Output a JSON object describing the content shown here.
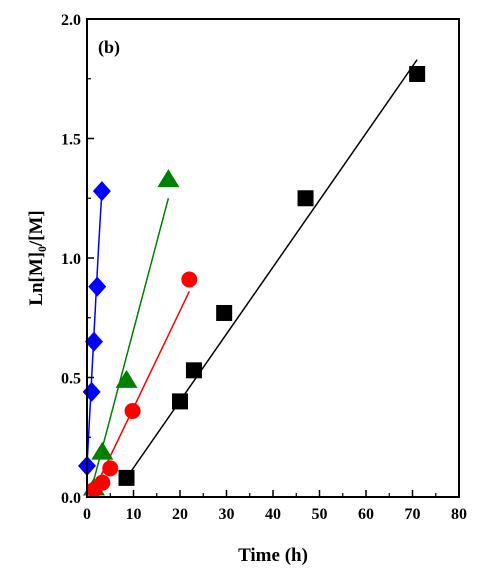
{
  "chart_data": {
    "type": "scatter",
    "panel_label": "(b)",
    "xlabel": "Time (h)",
    "ylabel": "Ln[M]₀/[M]",
    "xlim": [
      0,
      80
    ],
    "ylim": [
      0,
      2.0
    ],
    "x_ticks": [
      "0",
      "10",
      "20",
      "30",
      "40",
      "50",
      "60",
      "70",
      "80"
    ],
    "y_ticks": [
      "0.0",
      "0.5",
      "1.0",
      "1.5",
      "2.0"
    ],
    "grid": false,
    "legend": "none",
    "series": [
      {
        "color": "#0000ff",
        "marker": "diamond",
        "points": [
          [
            0.0,
            0.13
          ],
          [
            1.0,
            0.44
          ],
          [
            1.5,
            0.65
          ],
          [
            2.2,
            0.88
          ],
          [
            3.2,
            1.28
          ]
        ],
        "fit": [
          [
            0.0,
            0.13
          ],
          [
            2.5,
            1.05
          ],
          [
            3.2,
            1.28
          ]
        ]
      },
      {
        "color": "#008000",
        "marker": "triangle",
        "points": [
          [
            1.5,
            0.04
          ],
          [
            3.3,
            0.19
          ],
          [
            8.5,
            0.49
          ],
          [
            17.5,
            1.33
          ]
        ],
        "fit": [
          [
            0.5,
            0.0
          ],
          [
            17.5,
            1.25
          ]
        ]
      },
      {
        "color": "#ff0000",
        "marker": "circle",
        "points": [
          [
            1.5,
            0.03
          ],
          [
            3.3,
            0.06
          ],
          [
            5.0,
            0.12
          ],
          [
            9.8,
            0.36
          ],
          [
            22.0,
            0.91
          ]
        ],
        "fit": [
          [
            0.8,
            0.0
          ],
          [
            22.0,
            0.86
          ]
        ]
      },
      {
        "color": "#000000",
        "marker": "square",
        "points": [
          [
            8.5,
            0.08
          ],
          [
            20.0,
            0.4
          ],
          [
            23.0,
            0.53
          ],
          [
            29.5,
            0.77
          ],
          [
            47.0,
            1.25
          ],
          [
            71.0,
            1.77
          ]
        ],
        "fit": [
          [
            8.5,
            0.08
          ],
          [
            71.0,
            1.83
          ]
        ]
      }
    ]
  }
}
